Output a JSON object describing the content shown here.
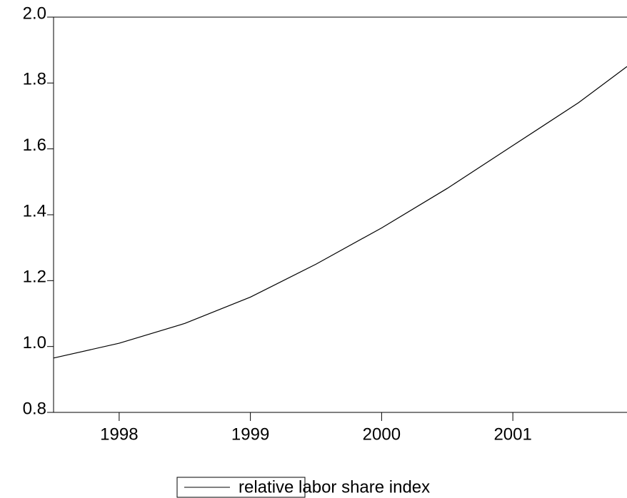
{
  "chart_data": {
    "type": "line",
    "x": [
      1997.5,
      1998,
      1998.5,
      1999,
      1999.5,
      2000,
      2000.5,
      2001,
      2001.5,
      2001.87
    ],
    "series": [
      {
        "name": "relative labor share index",
        "color": "#000000",
        "values": [
          0.965,
          1.01,
          1.07,
          1.15,
          1.25,
          1.36,
          1.48,
          1.61,
          1.74,
          1.85
        ]
      }
    ],
    "xlim": [
      1997.5,
      2001.87
    ],
    "xticks": [
      1998,
      1999,
      2000,
      2001
    ],
    "ylim": [
      0.8,
      2.0
    ],
    "yticks": [
      {
        "value": 0.8,
        "label": "0.8"
      },
      {
        "value": 1.0,
        "label": "1.0"
      },
      {
        "value": 1.2,
        "label": "1.2"
      },
      {
        "value": 1.4,
        "label": "1.4"
      },
      {
        "value": 1.6,
        "label": "1.6"
      },
      {
        "value": 1.8,
        "label": "1.8"
      },
      {
        "value": 2.0,
        "label": "2.0"
      }
    ],
    "legend": "bottom"
  }
}
